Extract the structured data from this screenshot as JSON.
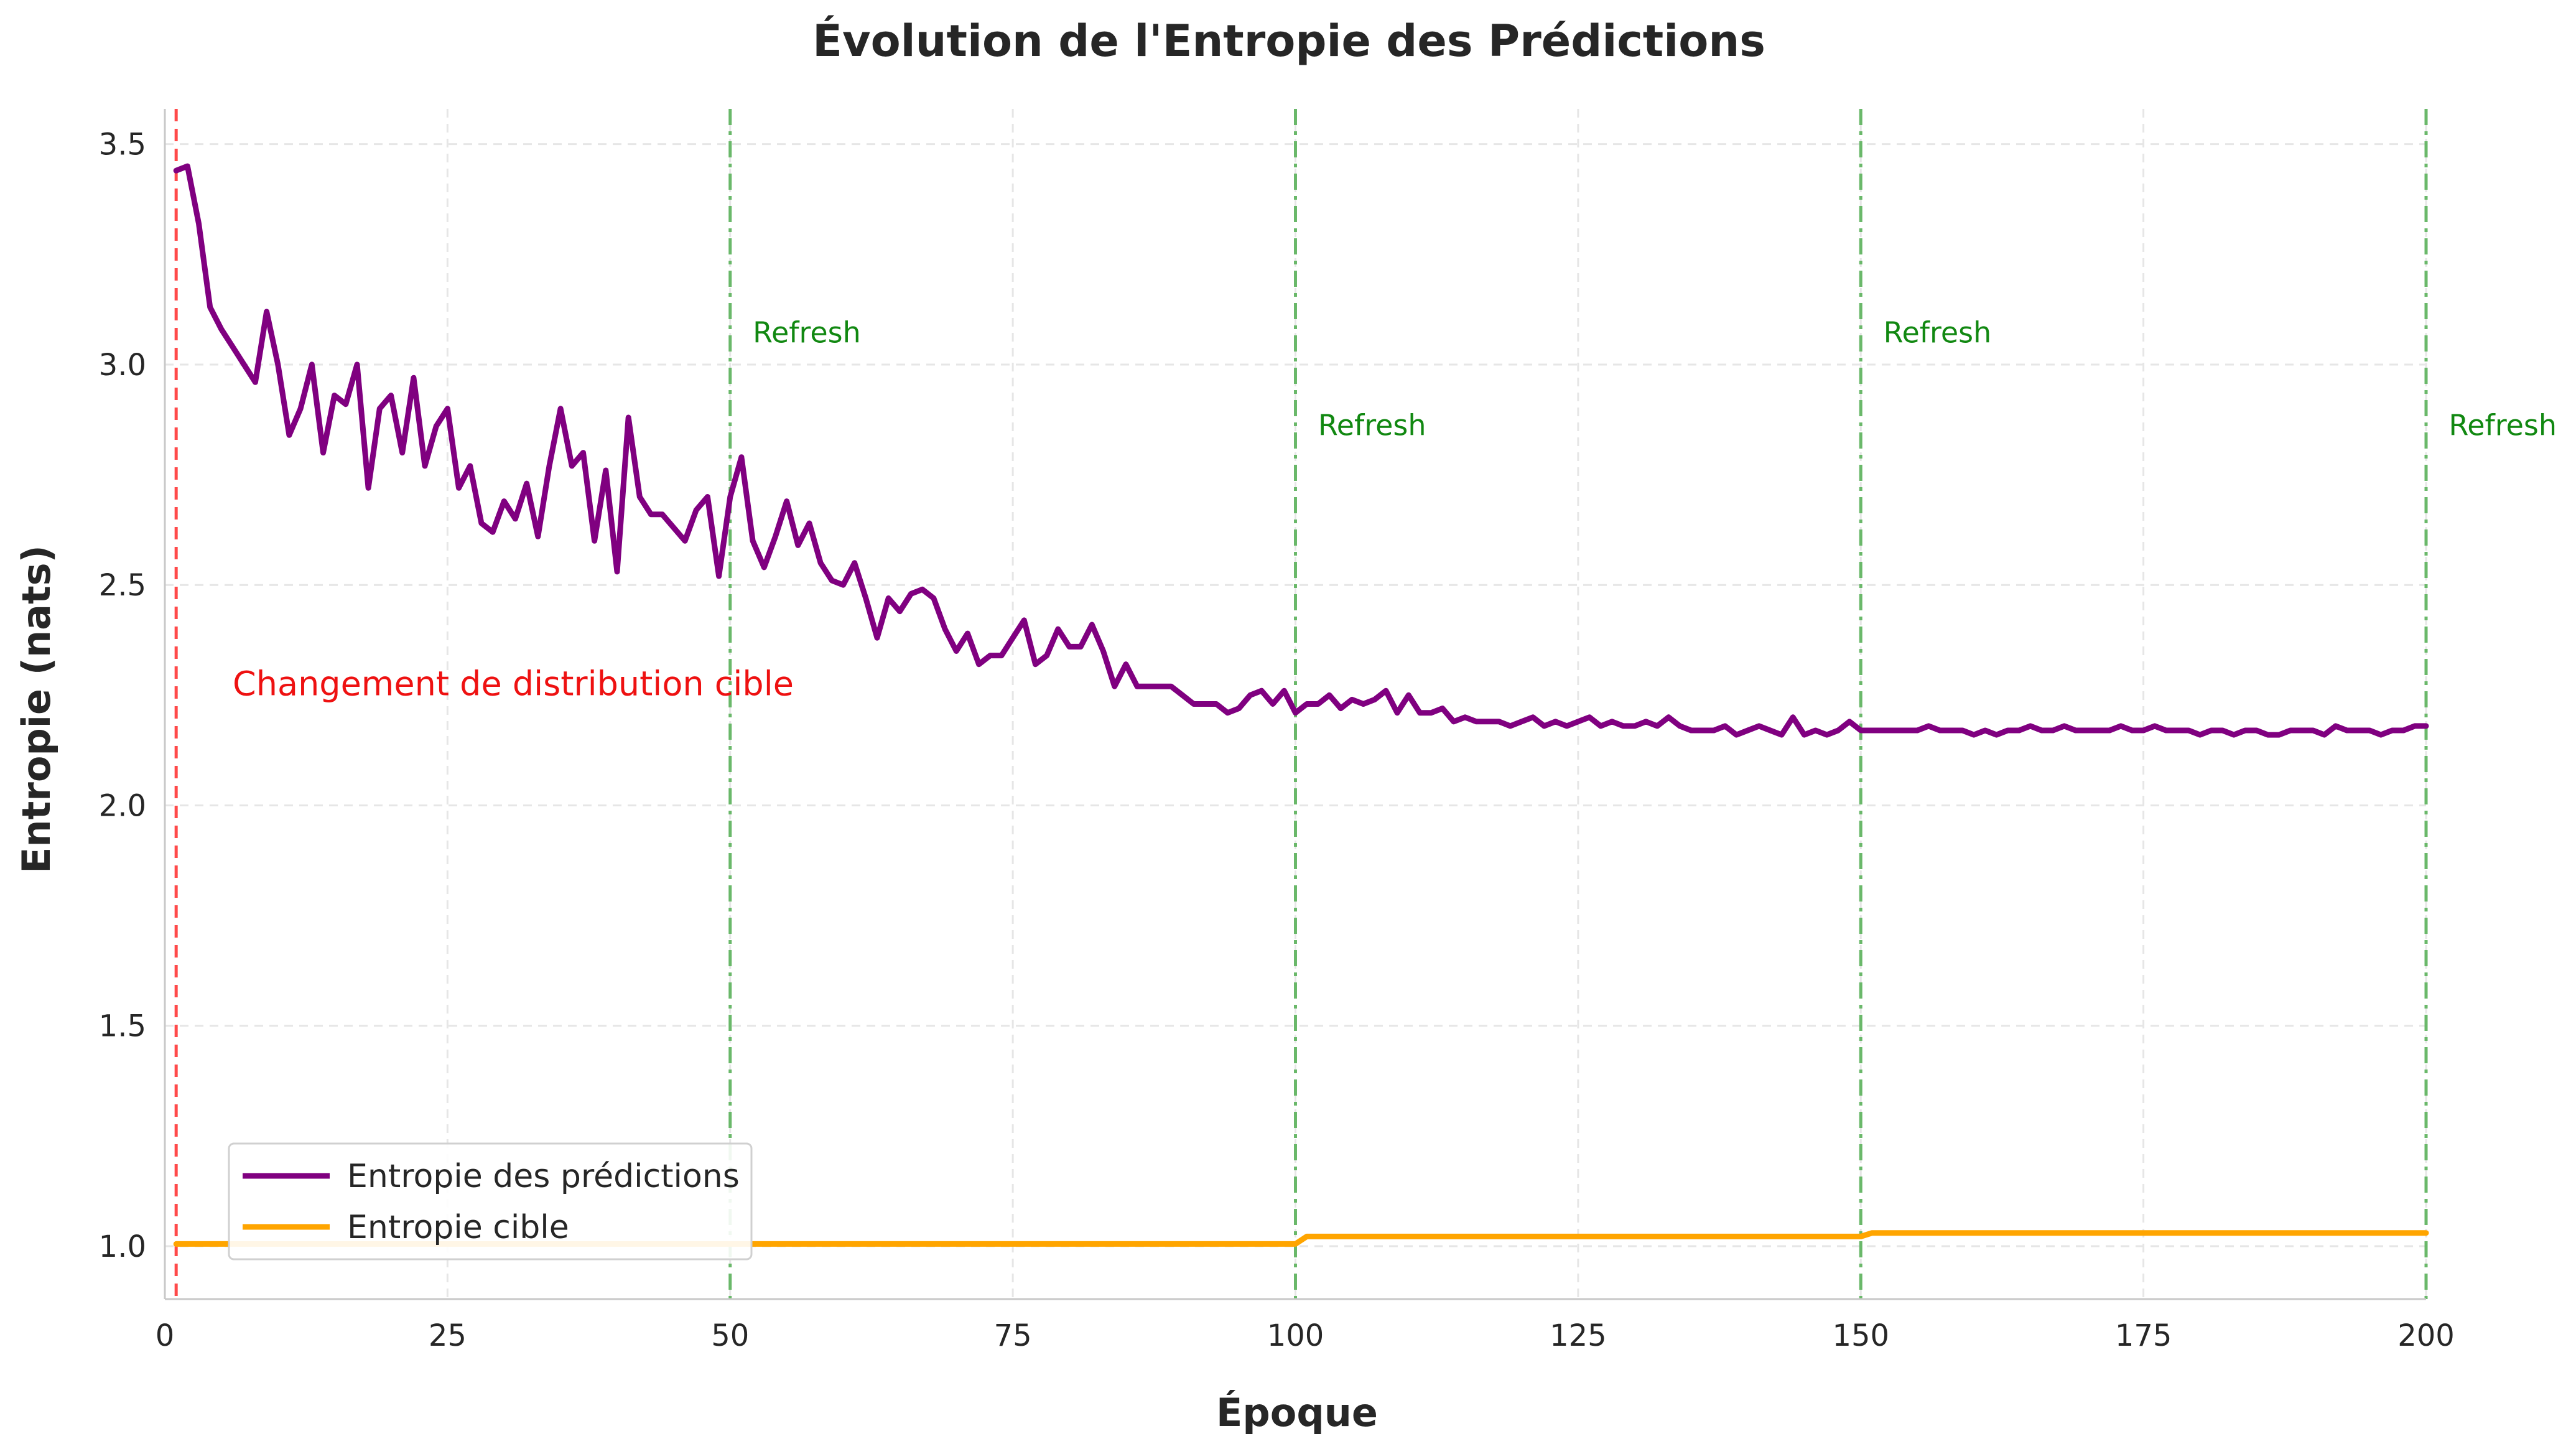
{
  "chart_data": {
    "type": "line",
    "title": "Évolution de l'Entropie des Prédictions",
    "xlabel": "Époque",
    "ylabel": "Entropie (nats)",
    "xlim": [
      0,
      200
    ],
    "ylim": [
      0.88,
      3.58
    ],
    "x_ticks": [
      0,
      25,
      50,
      75,
      100,
      125,
      150,
      175,
      200
    ],
    "x_tick_labels": [
      "0",
      "25",
      "50",
      "75",
      "100",
      "125",
      "150",
      "175",
      "200"
    ],
    "y_ticks": [
      1.0,
      1.5,
      2.0,
      2.5,
      3.0,
      3.5
    ],
    "y_tick_labels": [
      "1.0",
      "1.5",
      "2.0",
      "2.5",
      "3.0",
      "3.5"
    ],
    "grid": true,
    "legend_placement": "lower-left",
    "series": [
      {
        "name": "Entropie des prédictions",
        "color": "#800080",
        "points": [
          [
            1,
            3.44
          ],
          [
            2,
            3.45
          ],
          [
            3,
            3.32
          ],
          [
            4,
            3.13
          ],
          [
            5,
            3.08
          ],
          [
            6,
            3.04
          ],
          [
            7,
            3.0
          ],
          [
            8,
            2.96
          ],
          [
            9,
            3.12
          ],
          [
            10,
            3.0
          ],
          [
            11,
            2.84
          ],
          [
            12,
            2.9
          ],
          [
            13,
            3.0
          ],
          [
            14,
            2.8
          ],
          [
            15,
            2.93
          ],
          [
            16,
            2.91
          ],
          [
            17,
            3.0
          ],
          [
            18,
            2.72
          ],
          [
            19,
            2.9
          ],
          [
            20,
            2.93
          ],
          [
            21,
            2.8
          ],
          [
            22,
            2.97
          ],
          [
            23,
            2.77
          ],
          [
            24,
            2.86
          ],
          [
            25,
            2.9
          ],
          [
            26,
            2.72
          ],
          [
            27,
            2.77
          ],
          [
            28,
            2.64
          ],
          [
            29,
            2.62
          ],
          [
            30,
            2.69
          ],
          [
            31,
            2.65
          ],
          [
            32,
            2.73
          ],
          [
            33,
            2.61
          ],
          [
            34,
            2.77
          ],
          [
            35,
            2.9
          ],
          [
            36,
            2.77
          ],
          [
            37,
            2.8
          ],
          [
            38,
            2.6
          ],
          [
            39,
            2.76
          ],
          [
            40,
            2.53
          ],
          [
            41,
            2.88
          ],
          [
            42,
            2.7
          ],
          [
            43,
            2.66
          ],
          [
            44,
            2.66
          ],
          [
            45,
            2.63
          ],
          [
            46,
            2.6
          ],
          [
            47,
            2.67
          ],
          [
            48,
            2.7
          ],
          [
            49,
            2.52
          ],
          [
            50,
            2.7
          ],
          [
            51,
            2.79
          ],
          [
            52,
            2.6
          ],
          [
            53,
            2.54
          ],
          [
            54,
            2.61
          ],
          [
            55,
            2.69
          ],
          [
            56,
            2.59
          ],
          [
            57,
            2.64
          ],
          [
            58,
            2.55
          ],
          [
            59,
            2.51
          ],
          [
            60,
            2.5
          ],
          [
            61,
            2.55
          ],
          [
            62,
            2.47
          ],
          [
            63,
            2.38
          ],
          [
            64,
            2.47
          ],
          [
            65,
            2.44
          ],
          [
            66,
            2.48
          ],
          [
            67,
            2.49
          ],
          [
            68,
            2.47
          ],
          [
            69,
            2.4
          ],
          [
            70,
            2.35
          ],
          [
            71,
            2.39
          ],
          [
            72,
            2.32
          ],
          [
            73,
            2.34
          ],
          [
            74,
            2.34
          ],
          [
            75,
            2.38
          ],
          [
            76,
            2.42
          ],
          [
            77,
            2.32
          ],
          [
            78,
            2.34
          ],
          [
            79,
            2.4
          ],
          [
            80,
            2.36
          ],
          [
            81,
            2.36
          ],
          [
            82,
            2.41
          ],
          [
            83,
            2.35
          ],
          [
            84,
            2.27
          ],
          [
            85,
            2.32
          ],
          [
            86,
            2.27
          ],
          [
            87,
            2.27
          ],
          [
            88,
            2.27
          ],
          [
            89,
            2.27
          ],
          [
            90,
            2.25
          ],
          [
            91,
            2.23
          ],
          [
            92,
            2.23
          ],
          [
            93,
            2.23
          ],
          [
            94,
            2.21
          ],
          [
            95,
            2.22
          ],
          [
            96,
            2.25
          ],
          [
            97,
            2.26
          ],
          [
            98,
            2.23
          ],
          [
            99,
            2.26
          ],
          [
            100,
            2.21
          ],
          [
            101,
            2.23
          ],
          [
            102,
            2.23
          ],
          [
            103,
            2.25
          ],
          [
            104,
            2.22
          ],
          [
            105,
            2.24
          ],
          [
            106,
            2.23
          ],
          [
            107,
            2.24
          ],
          [
            108,
            2.26
          ],
          [
            109,
            2.21
          ],
          [
            110,
            2.25
          ],
          [
            111,
            2.21
          ],
          [
            112,
            2.21
          ],
          [
            113,
            2.22
          ],
          [
            114,
            2.19
          ],
          [
            115,
            2.2
          ],
          [
            116,
            2.19
          ],
          [
            117,
            2.19
          ],
          [
            118,
            2.19
          ],
          [
            119,
            2.18
          ],
          [
            120,
            2.19
          ],
          [
            121,
            2.2
          ],
          [
            122,
            2.18
          ],
          [
            123,
            2.19
          ],
          [
            124,
            2.18
          ],
          [
            125,
            2.19
          ],
          [
            126,
            2.2
          ],
          [
            127,
            2.18
          ],
          [
            128,
            2.19
          ],
          [
            129,
            2.18
          ],
          [
            130,
            2.18
          ],
          [
            131,
            2.19
          ],
          [
            132,
            2.18
          ],
          [
            133,
            2.2
          ],
          [
            134,
            2.18
          ],
          [
            135,
            2.17
          ],
          [
            136,
            2.17
          ],
          [
            137,
            2.17
          ],
          [
            138,
            2.18
          ],
          [
            139,
            2.16
          ],
          [
            140,
            2.17
          ],
          [
            141,
            2.18
          ],
          [
            142,
            2.17
          ],
          [
            143,
            2.16
          ],
          [
            144,
            2.2
          ],
          [
            145,
            2.16
          ],
          [
            146,
            2.17
          ],
          [
            147,
            2.16
          ],
          [
            148,
            2.17
          ],
          [
            149,
            2.19
          ],
          [
            150,
            2.17
          ],
          [
            151,
            2.17
          ],
          [
            152,
            2.17
          ],
          [
            153,
            2.17
          ],
          [
            154,
            2.17
          ],
          [
            155,
            2.17
          ],
          [
            156,
            2.18
          ],
          [
            157,
            2.17
          ],
          [
            158,
            2.17
          ],
          [
            159,
            2.17
          ],
          [
            160,
            2.16
          ],
          [
            161,
            2.17
          ],
          [
            162,
            2.16
          ],
          [
            163,
            2.17
          ],
          [
            164,
            2.17
          ],
          [
            165,
            2.18
          ],
          [
            166,
            2.17
          ],
          [
            167,
            2.17
          ],
          [
            168,
            2.18
          ],
          [
            169,
            2.17
          ],
          [
            170,
            2.17
          ],
          [
            171,
            2.17
          ],
          [
            172,
            2.17
          ],
          [
            173,
            2.18
          ],
          [
            174,
            2.17
          ],
          [
            175,
            2.17
          ],
          [
            176,
            2.18
          ],
          [
            177,
            2.17
          ],
          [
            178,
            2.17
          ],
          [
            179,
            2.17
          ],
          [
            180,
            2.16
          ],
          [
            181,
            2.17
          ],
          [
            182,
            2.17
          ],
          [
            183,
            2.16
          ],
          [
            184,
            2.17
          ],
          [
            185,
            2.17
          ],
          [
            186,
            2.16
          ],
          [
            187,
            2.16
          ],
          [
            188,
            2.17
          ],
          [
            189,
            2.17
          ],
          [
            190,
            2.17
          ],
          [
            191,
            2.16
          ],
          [
            192,
            2.18
          ],
          [
            193,
            2.17
          ],
          [
            194,
            2.17
          ],
          [
            195,
            2.17
          ],
          [
            196,
            2.16
          ],
          [
            197,
            2.17
          ],
          [
            198,
            2.17
          ],
          [
            199,
            2.18
          ],
          [
            200,
            2.18
          ]
        ]
      },
      {
        "name": "Entropie cible",
        "color": "#ffa500",
        "points": [
          [
            1,
            1.005
          ],
          [
            100,
            1.005
          ],
          [
            101,
            1.022
          ],
          [
            150,
            1.022
          ],
          [
            151,
            1.03
          ],
          [
            200,
            1.03
          ]
        ]
      }
    ],
    "vertical_lines": [
      {
        "x": 1,
        "color": "#ff4a4a",
        "style": "dashed"
      },
      {
        "x": 50,
        "color": "#6ab86a",
        "style": "dashdot"
      },
      {
        "x": 100,
        "color": "#6ab86a",
        "style": "dashdot"
      },
      {
        "x": 150,
        "color": "#6ab86a",
        "style": "dashdot"
      },
      {
        "x": 200,
        "color": "#6ab86a",
        "style": "dashdot"
      }
    ],
    "annotations": [
      {
        "text": "Changement de distribution cible",
        "x": 6,
        "y": 2.25,
        "color": "#ee1111"
      },
      {
        "text": "Refresh",
        "x": 52,
        "y": 3.05,
        "color": "#118811"
      },
      {
        "text": "Refresh",
        "x": 102,
        "y": 2.84,
        "color": "#118811"
      },
      {
        "text": "Refresh",
        "x": 152,
        "y": 3.05,
        "color": "#118811"
      },
      {
        "text": "Refresh",
        "x": 202,
        "y": 2.84,
        "color": "#118811"
      }
    ]
  }
}
